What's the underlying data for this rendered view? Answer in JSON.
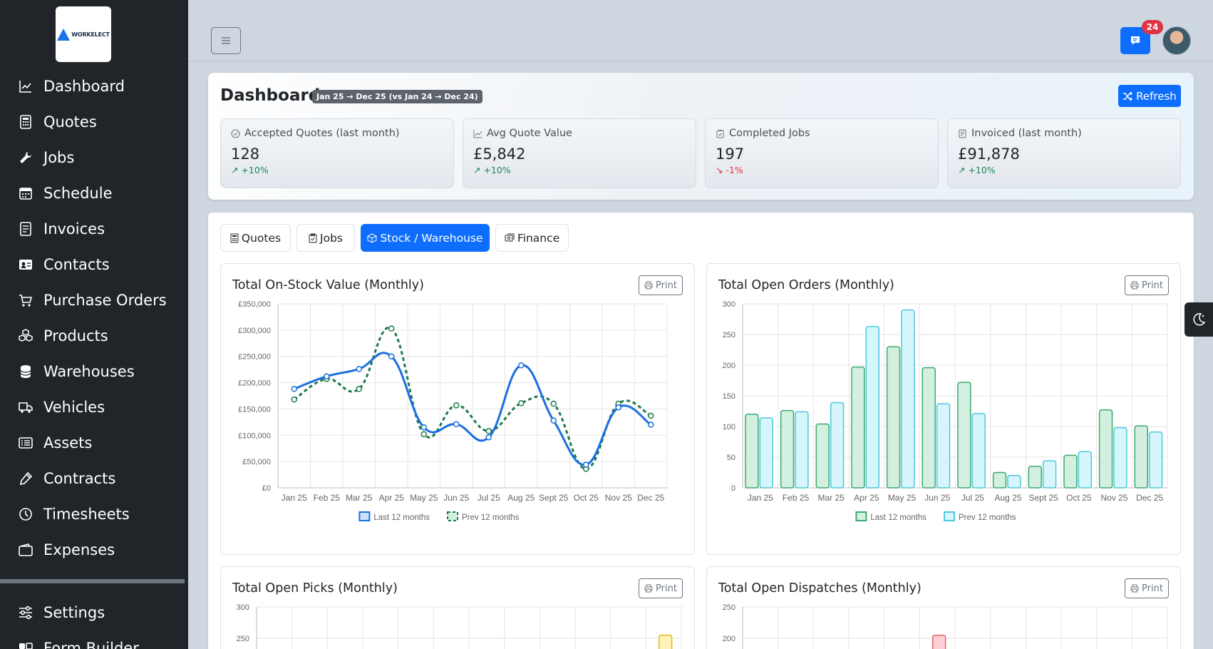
{
  "app": {
    "logo_text": "WORKELECT"
  },
  "sidebar": {
    "items": [
      {
        "label": "Dashboard",
        "icon": "chart-line-icon"
      },
      {
        "label": "Quotes",
        "icon": "calculator-icon"
      },
      {
        "label": "Jobs",
        "icon": "wrench-icon"
      },
      {
        "label": "Schedule",
        "icon": "calendar-icon"
      },
      {
        "label": "Invoices",
        "icon": "receipt-icon"
      },
      {
        "label": "Contacts",
        "icon": "contact-card-icon"
      },
      {
        "label": "Purchase Orders",
        "icon": "cart-icon"
      },
      {
        "label": "Products",
        "icon": "boxes-icon"
      },
      {
        "label": "Warehouses",
        "icon": "database-icon"
      },
      {
        "label": "Vehicles",
        "icon": "truck-icon"
      },
      {
        "label": "Assets",
        "icon": "list-card-icon"
      },
      {
        "label": "Contracts",
        "icon": "pen-icon"
      },
      {
        "label": "Timesheets",
        "icon": "clock-icon"
      },
      {
        "label": "Expenses",
        "icon": "wallet-icon"
      }
    ],
    "bottom_items": [
      {
        "label": "Settings",
        "icon": "sliders-icon"
      },
      {
        "label": "Form Builder",
        "icon": "toggle-icon"
      }
    ]
  },
  "topbar": {
    "menu_icon": "hamburger-icon",
    "chat_badge": "24",
    "chat_icon": "chat-icon"
  },
  "header": {
    "title": "Dashboard",
    "date_range": "Jan 25 → Dec 25 (vs Jan 24 → Dec 24)",
    "refresh_label": "Refresh",
    "kpis": [
      {
        "label": "Accepted Quotes (last month)",
        "value": "128",
        "delta": "↗ +10%",
        "trend": "up"
      },
      {
        "label": "Avg Quote Value",
        "value": "£5,842",
        "delta": "↗ +10%",
        "trend": "up"
      },
      {
        "label": "Completed Jobs",
        "value": "197",
        "delta": "↘ -1%",
        "trend": "down"
      },
      {
        "label": "Invoiced (last month)",
        "value": "£91,878",
        "delta": "↗ +10%",
        "trend": "up"
      }
    ]
  },
  "tabs": [
    {
      "label": "Quotes",
      "active": false
    },
    {
      "label": "Jobs",
      "active": false
    },
    {
      "label": "Stock / Warehouse",
      "active": true
    },
    {
      "label": "Finance",
      "active": false
    }
  ],
  "print_label": "Print",
  "colors": {
    "primary": "#0d6efd",
    "last12_line": "#1a6fdf",
    "prev12_line": "#1e7a4a",
    "last12_bar_fill": "#d2efdf",
    "last12_bar_stroke": "#3ea872",
    "prev12_bar_fill": "#d6f6fb",
    "prev12_bar_stroke": "#4cc9dc",
    "picks_bar_fill": "#fff1b8",
    "picks_bar_stroke": "#e2b821",
    "dispatch_bar_fill": "#fcd0d4",
    "dispatch_bar_stroke": "#e4606e"
  },
  "chart_data": [
    {
      "type": "line",
      "title": "Total On-Stock Value (Monthly)",
      "categories": [
        "Jan 25",
        "Feb 25",
        "Mar 25",
        "Apr 25",
        "May 25",
        "Jun 25",
        "Jul 25",
        "Aug 25",
        "Sept 25",
        "Oct 25",
        "Nov 25",
        "Dec 25"
      ],
      "ylim": [
        0,
        350000
      ],
      "yticks": [
        "£0",
        "£50,000",
        "£100,000",
        "£150,000",
        "£200,000",
        "£250,000",
        "£300,000",
        "£350,000"
      ],
      "series": [
        {
          "name": "Last 12 months",
          "values": [
            188000,
            212000,
            226000,
            250000,
            115000,
            121000,
            96000,
            233000,
            128000,
            44000,
            153000,
            120000
          ]
        },
        {
          "name": "Prev 12 months",
          "values": [
            168000,
            207000,
            188000,
            303000,
            102000,
            157000,
            108000,
            161000,
            160000,
            36000,
            160000,
            137000
          ]
        }
      ],
      "legend": "bottom"
    },
    {
      "type": "bar",
      "title": "Total Open Orders (Monthly)",
      "categories": [
        "Jan 25",
        "Feb 25",
        "Mar 25",
        "Apr 25",
        "May 25",
        "Jun 25",
        "Jul 25",
        "Aug 25",
        "Sept 25",
        "Oct 25",
        "Nov 25",
        "Dec 25"
      ],
      "ylim": [
        0,
        300
      ],
      "yticks": [
        "0",
        "50",
        "100",
        "150",
        "200",
        "250",
        "300"
      ],
      "series": [
        {
          "name": "Last 12 months",
          "values": [
            120,
            126,
            104,
            197,
            230,
            196,
            172,
            25,
            35,
            53,
            127,
            101
          ]
        },
        {
          "name": "Prev 12 months",
          "values": [
            114,
            124,
            139,
            263,
            290,
            137,
            121,
            20,
            44,
            59,
            98,
            91
          ]
        }
      ],
      "legend": "bottom"
    },
    {
      "type": "bar",
      "title": "Total Open Picks (Monthly)",
      "ylim": [
        0,
        300
      ],
      "yticks": [
        "300",
        "250"
      ],
      "series": [
        {
          "values": [
            0,
            0,
            0,
            0,
            0,
            0,
            0,
            0,
            0,
            0,
            0,
            255
          ]
        }
      ]
    },
    {
      "type": "bar",
      "title": "Total Open Dispatches (Monthly)",
      "ylim": [
        0,
        250
      ],
      "yticks": [
        "250",
        "200"
      ],
      "series": [
        {
          "values": [
            0,
            0,
            0,
            0,
            0,
            205,
            0,
            0,
            0,
            0,
            0,
            0
          ]
        }
      ]
    }
  ]
}
